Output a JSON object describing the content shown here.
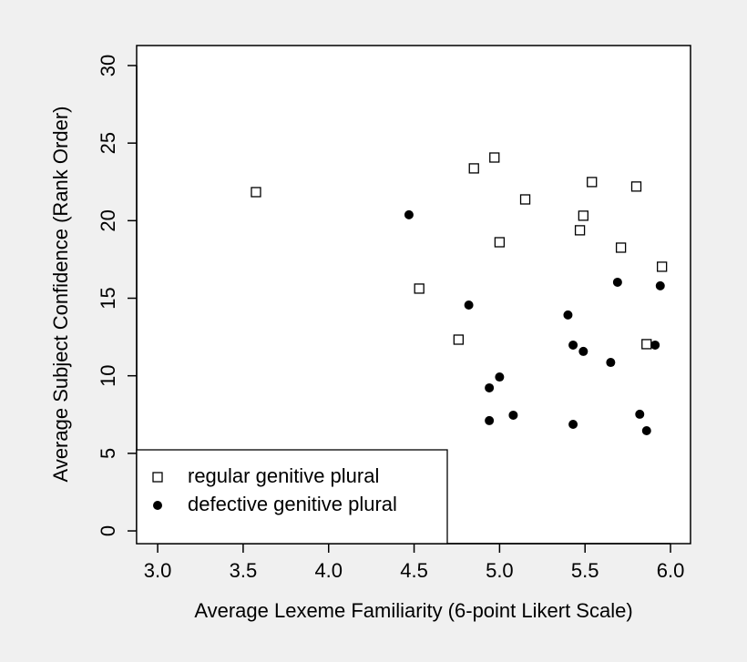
{
  "chart_data": {
    "type": "scatter",
    "x_label": "Average Lexeme Familiarity (6-point Likert Scale)",
    "y_label": "Average Subject Confidence (Rank Order)",
    "xlim": [
      2.877,
      6.117
    ],
    "ylim": [
      -0.82,
      31.29
    ],
    "xticks": [
      {
        "value": 3,
        "label": "3.0"
      },
      {
        "value": 3.5,
        "label": "3.5"
      },
      {
        "value": 4,
        "label": "4.0"
      },
      {
        "value": 4.5,
        "label": "4.5"
      },
      {
        "value": 5,
        "label": "5.0"
      },
      {
        "value": 5.5,
        "label": "5.5"
      },
      {
        "value": 6,
        "label": "6.0"
      }
    ],
    "yticks": [
      0,
      5,
      10,
      15,
      20,
      25,
      30
    ],
    "legend": "bottomleft",
    "series": [
      {
        "name": "regular genitive plural",
        "color": "#000000",
        "marker": "square",
        "x": [
          3.575,
          4.53,
          4.76,
          4.85,
          4.97,
          5.0,
          5.15,
          5.49,
          5.47,
          5.54,
          5.71,
          5.8,
          5.95,
          5.86
        ],
        "values": [
          21.84,
          15.62,
          12.33,
          23.37,
          24.07,
          18.61,
          21.37,
          20.32,
          19.38,
          22.49,
          18.26,
          22.2,
          17.03,
          12.04
        ]
      },
      {
        "name": "defective genitive plural",
        "color": "#000000",
        "marker": "dot",
        "x": [
          4.47,
          4.82,
          5.4,
          5.69,
          5.94,
          5.43,
          5.49,
          5.65,
          5.91,
          5.0,
          4.94,
          4.94,
          5.08,
          5.43,
          5.82,
          5.86
        ],
        "values": [
          20.38,
          14.56,
          13.92,
          16.03,
          15.8,
          11.98,
          11.57,
          10.86,
          11.98,
          9.92,
          9.22,
          7.11,
          7.46,
          6.87,
          7.52,
          6.46
        ]
      }
    ]
  }
}
